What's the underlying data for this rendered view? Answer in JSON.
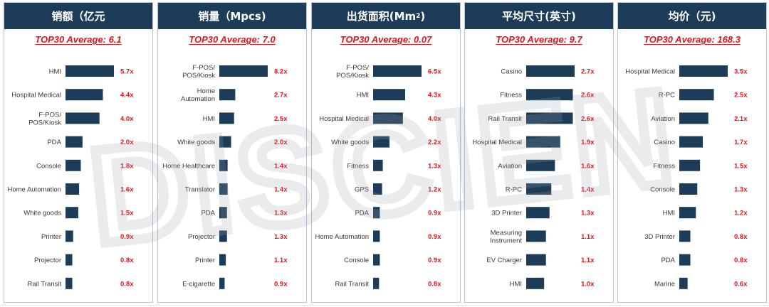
{
  "colors": {
    "header_bg": "#1d3c57",
    "bar": "#1d3c57",
    "label_red": "#e8141b",
    "text": "#3a3a3a"
  },
  "watermark_text": "DISCIEN",
  "chart_data": [
    {
      "type": "bar",
      "title": "销额（亿元",
      "title_sup": "",
      "title_suffix": "",
      "average_text": "TOP30 Average: 6.1",
      "categories": [
        "HMI",
        "Hospital Medical",
        "F-POS/\nPOS/Kiosk",
        "PDA",
        "Console",
        "Home Automation",
        "White goods",
        "Printer",
        "Projector",
        "Rail Transit"
      ],
      "values": [
        5.7,
        4.4,
        4.0,
        2.0,
        1.8,
        1.6,
        1.5,
        0.9,
        0.8,
        0.8
      ],
      "value_labels": [
        "5.7x",
        "4.4x",
        "4.0x",
        "2.0x",
        "1.8x",
        "1.6x",
        "1.5x",
        "0.9x",
        "0.8x",
        "0.8x"
      ]
    },
    {
      "type": "bar",
      "title": "销量（Mpcs)",
      "title_sup": "",
      "title_suffix": "",
      "average_text": "TOP30 Average: 7.0",
      "categories": [
        "F-POS/\nPOS/Kiosk",
        "Home\nAutomation",
        "HMI",
        "White goods",
        "Home Healthcare",
        "Translator",
        "PDA",
        "Projector",
        "Printer",
        "E-cigarette"
      ],
      "values": [
        8.2,
        2.7,
        2.5,
        2.0,
        1.4,
        1.4,
        1.3,
        1.3,
        1.1,
        0.9
      ],
      "value_labels": [
        "8.2x",
        "2.7x",
        "2.5x",
        "2.0x",
        "1.4x",
        "1.4x",
        "1.3x",
        "1.3x",
        "1.1x",
        "0.9x"
      ]
    },
    {
      "type": "bar",
      "title": "出货面积(Mm",
      "title_sup": "2",
      "title_suffix": ")",
      "average_text": "TOP30 Average: 0.07",
      "categories": [
        "F-POS/\nPOS/Kiosk",
        "HMI",
        "Hospital Medical",
        "White goods",
        "Fitness",
        "GPS",
        "PDA",
        "Home Automation",
        "Console",
        "Rail Transit"
      ],
      "values": [
        6.5,
        4.3,
        4.0,
        2.2,
        1.3,
        1.2,
        0.9,
        0.9,
        0.9,
        0.8
      ],
      "value_labels": [
        "6.5x",
        "4.3x",
        "4.0x",
        "2.2x",
        "1.3x",
        "1.2x",
        "0.9x",
        "0.9x",
        "0.9x",
        "0.8x"
      ]
    },
    {
      "type": "bar",
      "title": "平均尺寸(英寸)",
      "title_sup": "",
      "title_suffix": "",
      "average_text": "TOP30 Average: 9.7",
      "categories": [
        "Casino",
        "Fitness",
        "Rail Transit",
        "Hospital Medical",
        "Aviation",
        "R-PC",
        "3D Printer",
        "Measuring\nInstrument",
        "EV Charger",
        "HMI"
      ],
      "values": [
        2.7,
        2.6,
        2.6,
        1.9,
        1.6,
        1.4,
        1.3,
        1.1,
        1.1,
        1.0
      ],
      "value_labels": [
        "2.7x",
        "2.6x",
        "2.6x",
        "1.9x",
        "1.6x",
        "1.4x",
        "1.3x",
        "1.1x",
        "1.1x",
        "1.0x"
      ]
    },
    {
      "type": "bar",
      "title": "均价（元)",
      "title_sup": "",
      "title_suffix": "",
      "average_text": "TOP30 Average: 168.3",
      "categories": [
        "Hospital Medical",
        "R-PC",
        "Aviation",
        "Casino",
        "Fitness",
        "Console",
        "HMI",
        "3D Printer",
        "PDA",
        "Marine"
      ],
      "values": [
        3.5,
        2.5,
        2.1,
        1.7,
        1.5,
        1.3,
        1.2,
        0.8,
        0.8,
        0.6
      ],
      "value_labels": [
        "3.5x",
        "2.5x",
        "2.1x",
        "1.7x",
        "1.5x",
        "1.3x",
        "1.2x",
        "0.8x",
        "0.8x",
        "0.6x"
      ]
    }
  ]
}
